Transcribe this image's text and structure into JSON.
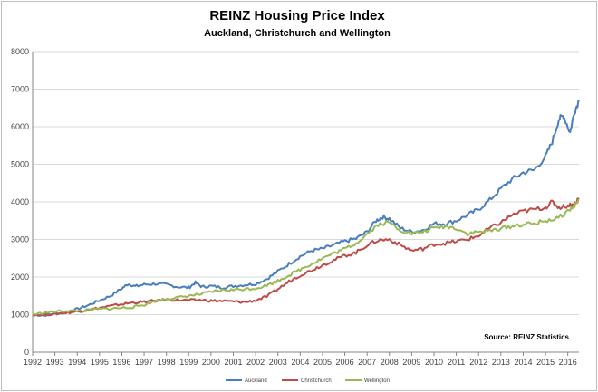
{
  "chart_data": {
    "type": "line",
    "title": "REINZ Housing Price Index",
    "subtitle": "Auckland, Christchurch and Wellington",
    "xlabel": "",
    "ylabel": "",
    "xlim": [
      1992,
      2016.5
    ],
    "ylim": [
      0,
      8000
    ],
    "x_ticks": [
      "1992",
      "1993",
      "1994",
      "1995",
      "1996",
      "1997",
      "1998",
      "1999",
      "2000",
      "2001",
      "2002",
      "2003",
      "2004",
      "2005",
      "2006",
      "2007",
      "2008",
      "2009",
      "2010",
      "2011",
      "2012",
      "2013",
      "2014",
      "2015",
      "2016"
    ],
    "y_ticks": [
      "0",
      "1000",
      "2000",
      "3000",
      "4000",
      "5000",
      "6000",
      "7000",
      "8000"
    ],
    "annotation": "Source: REINZ Statistics",
    "legend_position": "bottom",
    "series": [
      {
        "name": "Auckland",
        "color": "#4a7ebb",
        "points": [
          [
            1992,
            1000
          ],
          [
            1992.5,
            980
          ],
          [
            1993,
            1030
          ],
          [
            1993.5,
            1060
          ],
          [
            1994,
            1150
          ],
          [
            1994.5,
            1250
          ],
          [
            1995,
            1380
          ],
          [
            1995.5,
            1500
          ],
          [
            1996,
            1700
          ],
          [
            1996.3,
            1820
          ],
          [
            1996.6,
            1750
          ],
          [
            1997,
            1800
          ],
          [
            1997.5,
            1820
          ],
          [
            1998,
            1800
          ],
          [
            1998.5,
            1740
          ],
          [
            1999,
            1720
          ],
          [
            1999.3,
            1850
          ],
          [
            1999.6,
            1740
          ],
          [
            2000,
            1760
          ],
          [
            2000.5,
            1720
          ],
          [
            2001,
            1760
          ],
          [
            2001.5,
            1790
          ],
          [
            2002,
            1820
          ],
          [
            2002.5,
            1950
          ],
          [
            2003,
            2150
          ],
          [
            2003.5,
            2350
          ],
          [
            2004,
            2550
          ],
          [
            2004.5,
            2700
          ],
          [
            2005,
            2750
          ],
          [
            2005.5,
            2850
          ],
          [
            2006,
            2950
          ],
          [
            2006.5,
            3020
          ],
          [
            2007,
            3200
          ],
          [
            2007.4,
            3500
          ],
          [
            2007.7,
            3600
          ],
          [
            2008,
            3550
          ],
          [
            2008.5,
            3300
          ],
          [
            2009,
            3200
          ],
          [
            2009.5,
            3250
          ],
          [
            2010,
            3420
          ],
          [
            2010.5,
            3420
          ],
          [
            2011,
            3500
          ],
          [
            2011.5,
            3650
          ],
          [
            2012,
            3800
          ],
          [
            2012.5,
            4050
          ],
          [
            2013,
            4350
          ],
          [
            2013.5,
            4600
          ],
          [
            2014,
            4780
          ],
          [
            2014.5,
            4850
          ],
          [
            2015,
            5200
          ],
          [
            2015.3,
            5600
          ],
          [
            2015.6,
            6200
          ],
          [
            2015.8,
            6300
          ],
          [
            2016.1,
            5850
          ],
          [
            2016.3,
            6400
          ],
          [
            2016.5,
            6700
          ]
        ]
      },
      {
        "name": "Christchurch",
        "color": "#be4b48",
        "points": [
          [
            1992,
            1000
          ],
          [
            1992.5,
            1000
          ],
          [
            1993,
            1020
          ],
          [
            1993.5,
            1050
          ],
          [
            1994,
            1080
          ],
          [
            1994.5,
            1130
          ],
          [
            1995,
            1180
          ],
          [
            1995.5,
            1230
          ],
          [
            1996,
            1280
          ],
          [
            1996.5,
            1320
          ],
          [
            1997,
            1340
          ],
          [
            1997.5,
            1370
          ],
          [
            1998,
            1400
          ],
          [
            1998.5,
            1390
          ],
          [
            1999,
            1380
          ],
          [
            1999.5,
            1390
          ],
          [
            2000,
            1370
          ],
          [
            2000.5,
            1360
          ],
          [
            2001,
            1350
          ],
          [
            2001.5,
            1330
          ],
          [
            2002,
            1380
          ],
          [
            2002.5,
            1480
          ],
          [
            2003,
            1680
          ],
          [
            2003.5,
            1880
          ],
          [
            2004,
            2050
          ],
          [
            2004.5,
            2180
          ],
          [
            2005,
            2320
          ],
          [
            2005.5,
            2450
          ],
          [
            2006,
            2570
          ],
          [
            2006.5,
            2650
          ],
          [
            2007,
            2850
          ],
          [
            2007.5,
            2980
          ],
          [
            2008,
            3000
          ],
          [
            2008.5,
            2850
          ],
          [
            2009,
            2700
          ],
          [
            2009.5,
            2750
          ],
          [
            2010,
            2870
          ],
          [
            2010.5,
            2900
          ],
          [
            2011,
            2950
          ],
          [
            2011.5,
            3000
          ],
          [
            2012,
            3100
          ],
          [
            2012.5,
            3300
          ],
          [
            2013,
            3450
          ],
          [
            2013.5,
            3650
          ],
          [
            2014,
            3750
          ],
          [
            2014.5,
            3800
          ],
          [
            2015,
            3850
          ],
          [
            2015.3,
            4000
          ],
          [
            2015.6,
            3850
          ],
          [
            2016,
            3900
          ],
          [
            2016.3,
            3950
          ],
          [
            2016.5,
            4100
          ]
        ]
      },
      {
        "name": "Wellington",
        "color": "#98b954",
        "points": [
          [
            1992,
            1000
          ],
          [
            1992.5,
            1050
          ],
          [
            1993,
            1080
          ],
          [
            1993.5,
            1100
          ],
          [
            1994,
            1100
          ],
          [
            1994.5,
            1120
          ],
          [
            1995,
            1150
          ],
          [
            1995.5,
            1160
          ],
          [
            1996,
            1180
          ],
          [
            1996.5,
            1200
          ],
          [
            1997,
            1260
          ],
          [
            1997.5,
            1360
          ],
          [
            1998,
            1420
          ],
          [
            1998.5,
            1450
          ],
          [
            1999,
            1500
          ],
          [
            1999.5,
            1540
          ],
          [
            2000,
            1600
          ],
          [
            2000.5,
            1650
          ],
          [
            2001,
            1660
          ],
          [
            2001.5,
            1680
          ],
          [
            2002,
            1700
          ],
          [
            2002.5,
            1780
          ],
          [
            2003,
            1900
          ],
          [
            2003.5,
            2050
          ],
          [
            2004,
            2200
          ],
          [
            2004.5,
            2350
          ],
          [
            2005,
            2500
          ],
          [
            2005.5,
            2630
          ],
          [
            2006,
            2750
          ],
          [
            2006.5,
            2900
          ],
          [
            2007,
            3150
          ],
          [
            2007.5,
            3400
          ],
          [
            2008,
            3450
          ],
          [
            2008.5,
            3250
          ],
          [
            2009,
            3150
          ],
          [
            2009.5,
            3200
          ],
          [
            2010,
            3300
          ],
          [
            2010.5,
            3350
          ],
          [
            2011,
            3300
          ],
          [
            2011.5,
            3150
          ],
          [
            2012,
            3200
          ],
          [
            2012.5,
            3220
          ],
          [
            2013,
            3300
          ],
          [
            2013.5,
            3350
          ],
          [
            2014,
            3400
          ],
          [
            2014.5,
            3420
          ],
          [
            2015,
            3500
          ],
          [
            2015.5,
            3550
          ],
          [
            2016,
            3750
          ],
          [
            2016.3,
            3900
          ],
          [
            2016.5,
            4050
          ]
        ]
      }
    ]
  }
}
